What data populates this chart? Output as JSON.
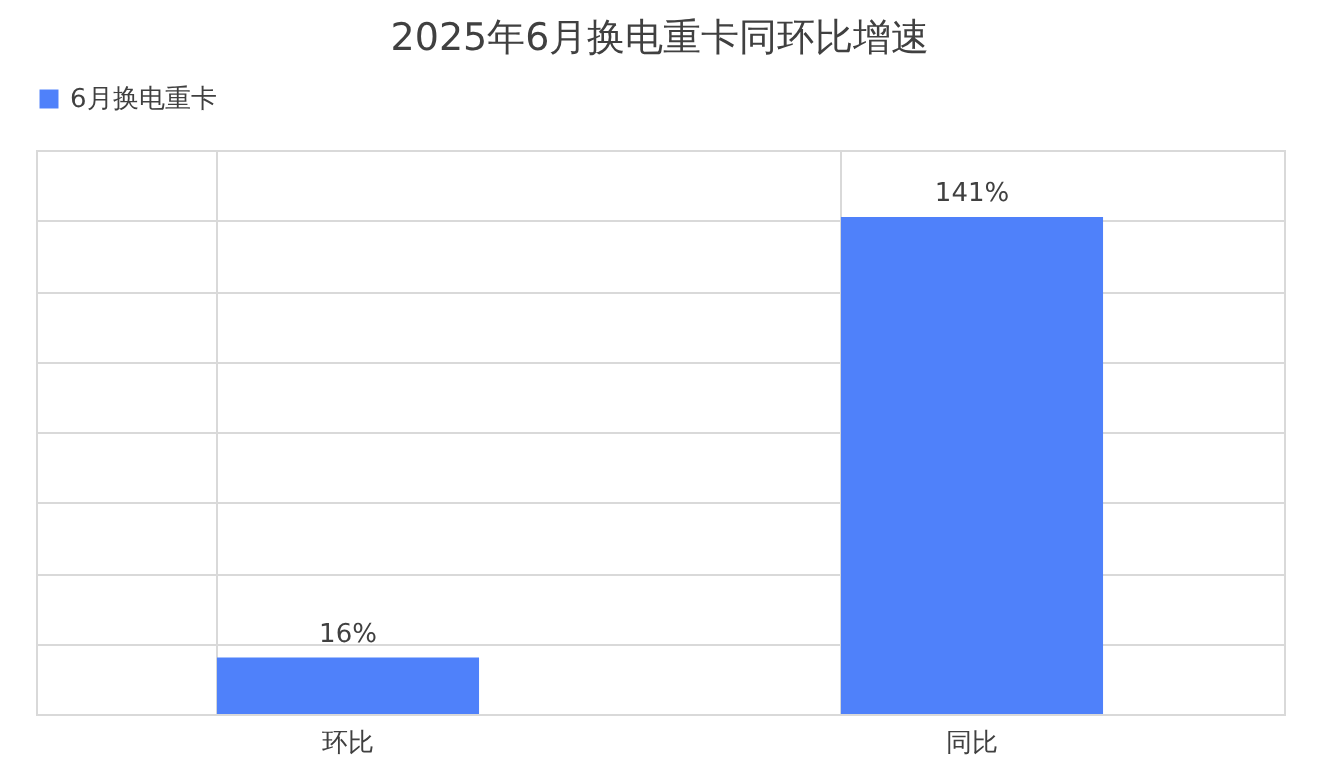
{
  "chart_data": {
    "type": "bar",
    "title": "2025年6月换电重卡同环比增速",
    "categories": [
      "环比",
      "同比"
    ],
    "series": [
      {
        "name": "6月换电重卡",
        "color": "#4f81fa",
        "values": [
          16,
          141
        ],
        "value_labels": [
          "16%",
          "141%"
        ]
      }
    ],
    "grid": true,
    "legend": "top",
    "tick_labels": "x"
  }
}
